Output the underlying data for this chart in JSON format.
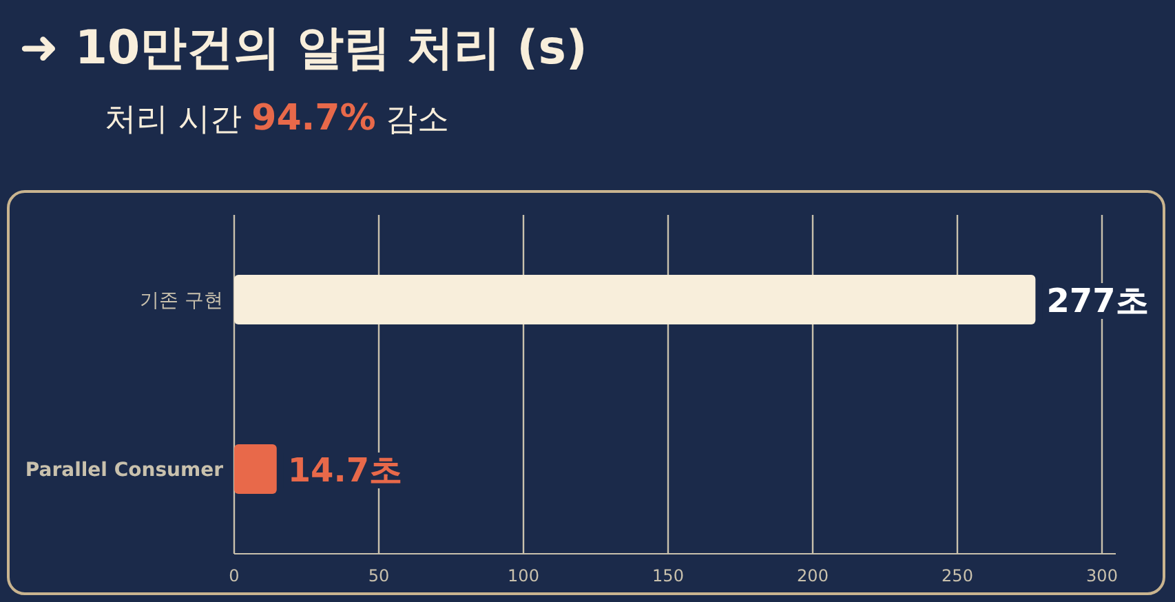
{
  "chart_data": {
    "type": "bar",
    "orientation": "horizontal",
    "title": "➜ 10만건의 알림 처리 (s)",
    "subtitle": "처리 시간 94.7% 감소",
    "categories": [
      "기존 구현",
      "Parallel Consumer"
    ],
    "values": [
      277,
      14.7
    ],
    "colors": [
      "#f8eedb",
      "#e8694a"
    ],
    "value_labels": [
      "277초",
      "14.7초"
    ],
    "xlim": [
      0,
      300
    ],
    "xticks": [
      0,
      50,
      100,
      150,
      200,
      250,
      300
    ],
    "grid": "x"
  }
}
